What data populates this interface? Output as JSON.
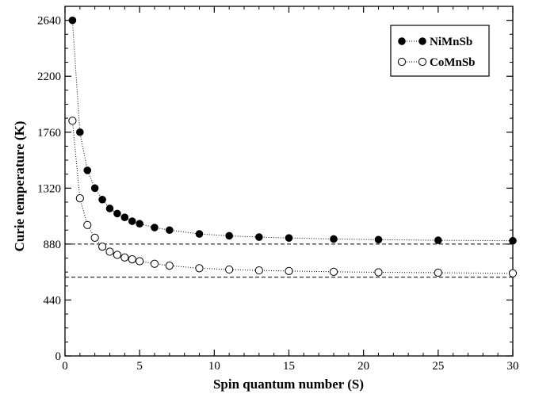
{
  "chart_data": {
    "type": "scatter",
    "xlabel": "Spin quantum number (S)",
    "ylabel": "Curie temperature (K)",
    "xlim": [
      0,
      30
    ],
    "ylim": [
      0,
      2750
    ],
    "xticks": [
      0,
      5,
      10,
      15,
      20,
      25,
      30
    ],
    "yticks": [
      0,
      440,
      880,
      1320,
      1760,
      2200,
      2640
    ],
    "grid": false,
    "legend_position": "top-right",
    "series": [
      {
        "name": "NiMnSb",
        "marker": "filled-circle",
        "color": "#000000",
        "x": [
          0.5,
          1,
          1.5,
          2,
          2.5,
          3,
          3.5,
          4,
          4.5,
          5,
          6,
          7,
          9,
          11,
          13,
          15,
          18,
          21,
          25,
          30
        ],
        "y": [
          2640,
          1760,
          1460,
          1320,
          1230,
          1160,
          1120,
          1090,
          1060,
          1040,
          1010,
          990,
          960,
          945,
          935,
          928,
          920,
          915,
          910,
          906
        ],
        "asymptote": 880
      },
      {
        "name": "CoMnSb",
        "marker": "open-circle",
        "color": "#000000",
        "x": [
          0.5,
          1,
          1.5,
          2,
          2.5,
          3,
          3.5,
          4,
          4.5,
          5,
          6,
          7,
          9,
          11,
          13,
          15,
          18,
          21,
          25,
          30
        ],
        "y": [
          1850,
          1240,
          1030,
          930,
          860,
          820,
          795,
          775,
          760,
          745,
          725,
          710,
          690,
          680,
          673,
          668,
          662,
          658,
          655,
          650
        ],
        "asymptote": 620
      }
    ]
  }
}
